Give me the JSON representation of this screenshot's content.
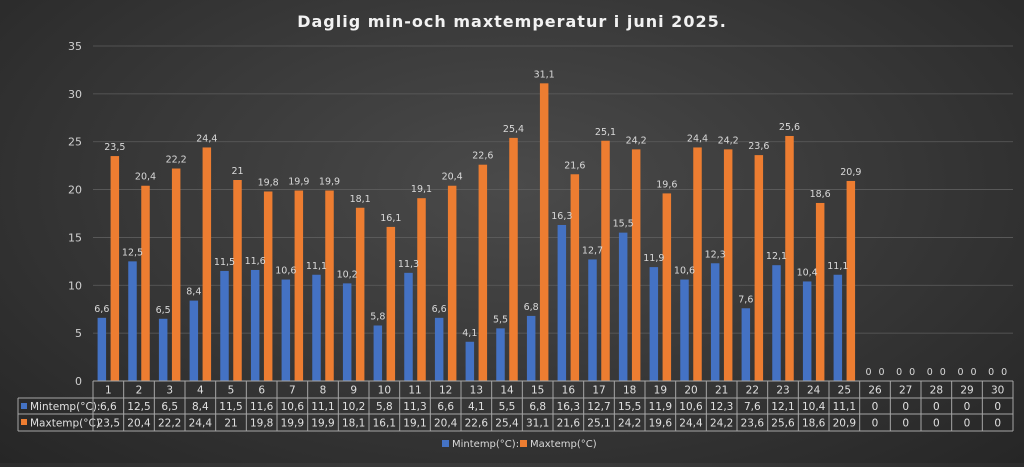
{
  "chart_data": {
    "type": "bar",
    "title": "Daglig min-och maxtemperatur i juni 2025.",
    "xlabel": "",
    "ylabel": "",
    "ylim": [
      0,
      35
    ],
    "y_ticks": [
      0,
      5,
      10,
      15,
      20,
      25,
      30,
      35
    ],
    "grid": true,
    "legend": "bottom",
    "data_table": true,
    "categories": [
      "1",
      "2",
      "3",
      "4",
      "5",
      "6",
      "7",
      "8",
      "9",
      "10",
      "11",
      "12",
      "13",
      "14",
      "15",
      "16",
      "17",
      "18",
      "19",
      "20",
      "21",
      "22",
      "23",
      "24",
      "25",
      "26",
      "27",
      "28",
      "29",
      "30"
    ],
    "series": [
      {
        "name": "Mintemp(°C):",
        "color": "#4472c4",
        "values": [
          6.6,
          12.5,
          6.5,
          8.4,
          11.5,
          11.6,
          10.6,
          11.1,
          10.2,
          5.8,
          11.3,
          6.6,
          4.1,
          5.5,
          6.8,
          16.3,
          12.7,
          15.5,
          11.9,
          10.6,
          12.3,
          7.6,
          12.1,
          10.4,
          11.1,
          0,
          0,
          0,
          0,
          0
        ],
        "labels": [
          "6,6",
          "12,5",
          "6,5",
          "8,4",
          "11,5",
          "11,6",
          "10,6",
          "11,1",
          "10,2",
          "5,8",
          "11,3",
          "6,6",
          "4,1",
          "5,5",
          "6,8",
          "16,3",
          "12,7",
          "15,5",
          "11,9",
          "10,6",
          "12,3",
          "7,6",
          "12,1",
          "10,4",
          "11,1",
          "0",
          "0",
          "0",
          "0",
          "0"
        ]
      },
      {
        "name": "Maxtemp(°C)",
        "color": "#ed7d31",
        "values": [
          23.5,
          20.4,
          22.2,
          24.4,
          21,
          19.8,
          19.9,
          19.9,
          18.1,
          16.1,
          19.1,
          20.4,
          22.6,
          25.4,
          31.1,
          21.6,
          25.1,
          24.2,
          19.6,
          24.4,
          24.2,
          23.6,
          25.6,
          18.6,
          20.9,
          0,
          0,
          0,
          0,
          0
        ],
        "labels": [
          "23,5",
          "20,4",
          "22,2",
          "24,4",
          "21",
          "19,8",
          "19,9",
          "19,9",
          "18,1",
          "16,1",
          "19,1",
          "20,4",
          "22,6",
          "25,4",
          "31,1",
          "21,6",
          "25,1",
          "24,2",
          "19,6",
          "24,4",
          "24,2",
          "23,6",
          "25,6",
          "18,6",
          "20,9",
          "0",
          "0",
          "0",
          "0",
          "0"
        ]
      }
    ]
  }
}
